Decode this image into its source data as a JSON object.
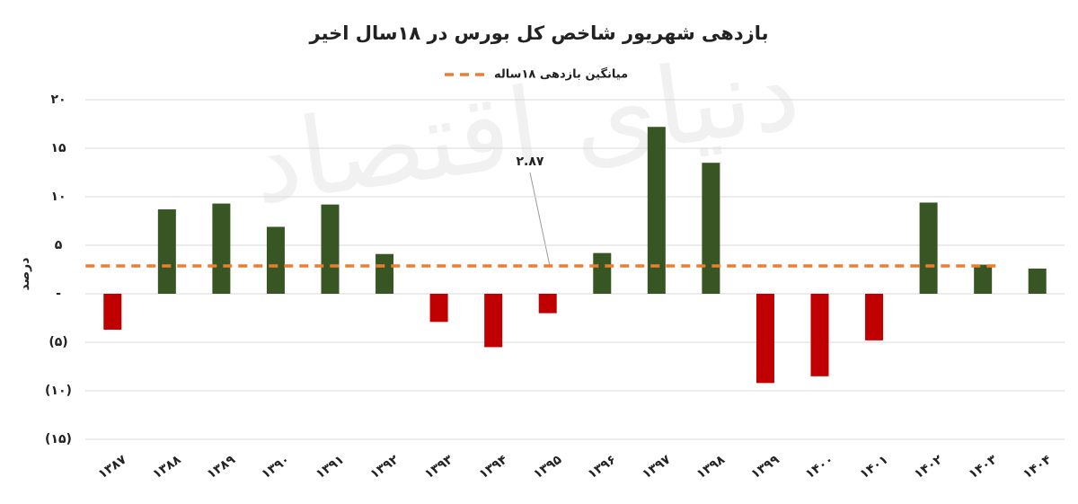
{
  "chart_data": {
    "type": "bar",
    "title": "بازدهی شهریور شاخص کل بورس در ۱۸سال اخیر",
    "watermark": "دنیای اقتصاد",
    "y_label": "درصد",
    "categories": [
      "۱۳۸۷",
      "۱۳۸۸",
      "۱۳۸۹",
      "۱۳۹۰",
      "۱۳۹۱",
      "۱۳۹۲",
      "۱۳۹۳",
      "۱۳۹۴",
      "۱۳۹۵",
      "۱۳۹۶",
      "۱۳۹۷",
      "۱۳۹۸",
      "۱۳۹۹",
      "۱۴۰۰",
      "۱۴۰۱",
      "۱۴۰۲",
      "۱۴۰۳",
      "۱۴۰۴"
    ],
    "values": [
      -3.7,
      8.7,
      9.3,
      6.9,
      9.2,
      4.1,
      -2.9,
      -5.5,
      -2.0,
      4.2,
      17.2,
      13.5,
      -9.2,
      -8.5,
      -4.8,
      9.4,
      3.0,
      2.6
    ],
    "positive_color": "#375623",
    "negative_color": "#c00000",
    "average": {
      "name": "میانگین بازدهی ۱۸ساله",
      "value": 2.87,
      "value_label": "۲.۸۷",
      "color": "#ed7d31"
    },
    "ylim": [
      -15,
      20
    ],
    "yticks": [
      {
        "value": 20,
        "label": "۲۰"
      },
      {
        "value": 15,
        "label": "۱۵"
      },
      {
        "value": 10,
        "label": "۱۰"
      },
      {
        "value": 5,
        "label": "۵"
      },
      {
        "value": 0,
        "label": "-"
      },
      {
        "value": -5,
        "label": "(۵)"
      },
      {
        "value": -10,
        "label": "(۱۰)"
      },
      {
        "value": -15,
        "label": "(۱۵)"
      }
    ],
    "grid": true
  }
}
